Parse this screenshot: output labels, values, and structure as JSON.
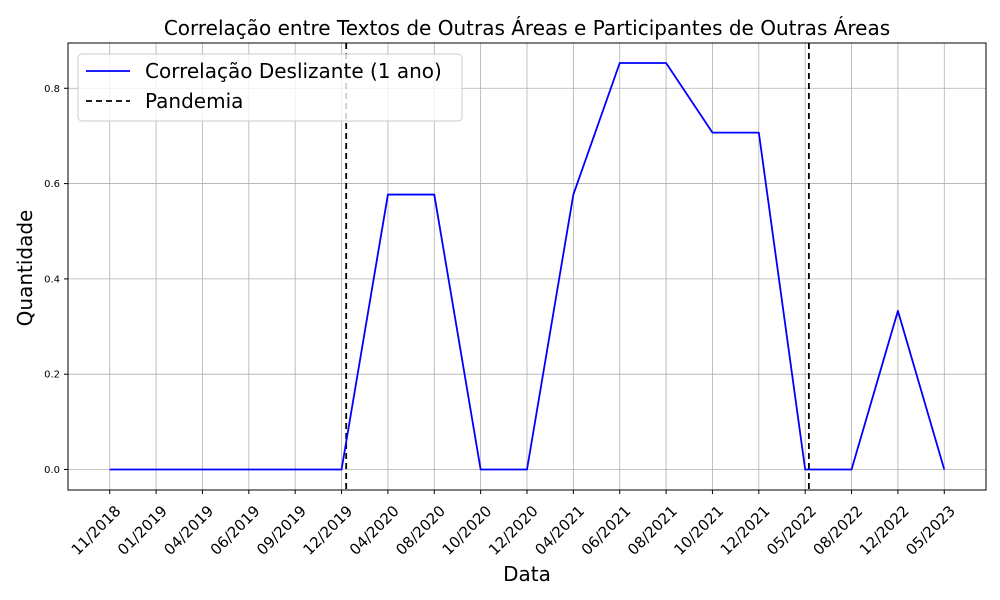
{
  "chart_data": {
    "type": "line",
    "title": "Correlação entre Textos de Outras Áreas e Participantes de Outras Áreas",
    "xlabel": "Data",
    "ylabel": "Quantidade",
    "categories": [
      "11/2018",
      "01/2019",
      "04/2019",
      "06/2019",
      "09/2019",
      "12/2019",
      "04/2020",
      "08/2020",
      "10/2020",
      "12/2020",
      "04/2021",
      "06/2021",
      "08/2021",
      "10/2021",
      "12/2021",
      "05/2022",
      "08/2022",
      "12/2022",
      "05/2023"
    ],
    "series": [
      {
        "name": "Correlação Deslizante (1 ano)",
        "color": "#0000ff",
        "style": "solid",
        "values": [
          0.0,
          0.0,
          0.0,
          0.0,
          0.0,
          0.0,
          0.577,
          0.577,
          0.0,
          0.0,
          0.577,
          0.853,
          0.853,
          0.707,
          0.707,
          0.0,
          0.0,
          0.333,
          0.0
        ]
      }
    ],
    "reference_lines": [
      {
        "name": "Pandemia",
        "color": "#000000",
        "style": "dashed",
        "x_positions": [
          5.1,
          15.08
        ]
      }
    ],
    "ylim": [
      -0.043,
      0.895
    ],
    "yticks": [
      0.0,
      0.2,
      0.4,
      0.6,
      0.8
    ],
    "ytick_labels": [
      "0.0",
      "0.2",
      "0.4",
      "0.6",
      "0.8"
    ],
    "xlim": [
      -0.9,
      18.9
    ],
    "grid": true,
    "legend_position": "top-left"
  }
}
